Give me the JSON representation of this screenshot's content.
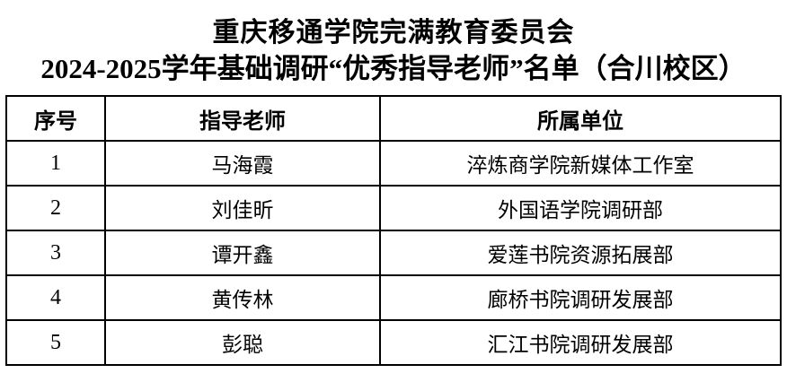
{
  "page": {
    "title_line1": "重庆移通学院完满教育委员会",
    "title_line2": "2024-2025学年基础调研“优秀指导老师”名单（合川校区）"
  },
  "table": {
    "headers": [
      "序号",
      "指导老师",
      "所属单位"
    ],
    "rows": [
      {
        "no": "1",
        "teacher": "马海霞",
        "unit": "淬炼商学院新媒体工作室"
      },
      {
        "no": "2",
        "teacher": "刘佳昕",
        "unit": "外国语学院调研部"
      },
      {
        "no": "3",
        "teacher": "谭开鑫",
        "unit": "爱莲书院资源拓展部"
      },
      {
        "no": "4",
        "teacher": "黄传林",
        "unit": "廊桥书院调研发展部"
      },
      {
        "no": "5",
        "teacher": "彭聪",
        "unit": "汇江书院调研发展部"
      }
    ]
  },
  "colors": {
    "text": "#000000",
    "border": "#000000",
    "background": "#ffffff"
  }
}
